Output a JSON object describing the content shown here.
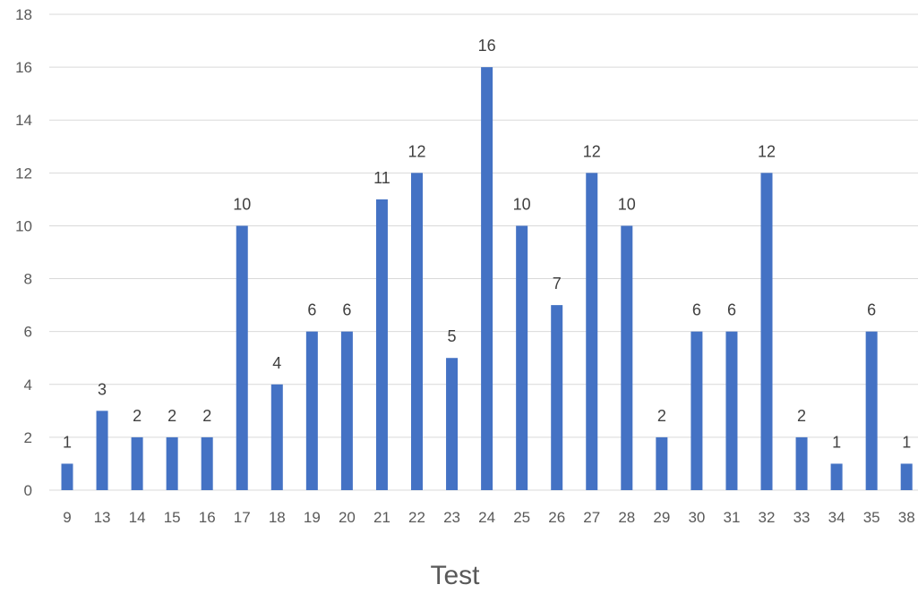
{
  "chart_data": {
    "type": "bar",
    "title": "",
    "xlabel": "Test",
    "ylabel": "",
    "ylim": [
      0,
      18
    ],
    "y_ticks": [
      0,
      2,
      4,
      6,
      8,
      10,
      12,
      14,
      16,
      18
    ],
    "grid": true,
    "legend": "none",
    "data_labels": true,
    "categories": [
      "9",
      "13",
      "14",
      "15",
      "16",
      "17",
      "18",
      "19",
      "20",
      "21",
      "22",
      "23",
      "24",
      "25",
      "26",
      "27",
      "28",
      "29",
      "30",
      "31",
      "32",
      "33",
      "34",
      "35",
      "38"
    ],
    "values": [
      1,
      3,
      2,
      2,
      2,
      10,
      4,
      6,
      6,
      11,
      12,
      5,
      16,
      10,
      7,
      12,
      10,
      2,
      6,
      6,
      12,
      2,
      1,
      6,
      1
    ],
    "colors": {
      "bar": "#4472C4",
      "grid": "#D9D9D9",
      "tick_text": "#595959",
      "label_text": "#404040"
    }
  }
}
